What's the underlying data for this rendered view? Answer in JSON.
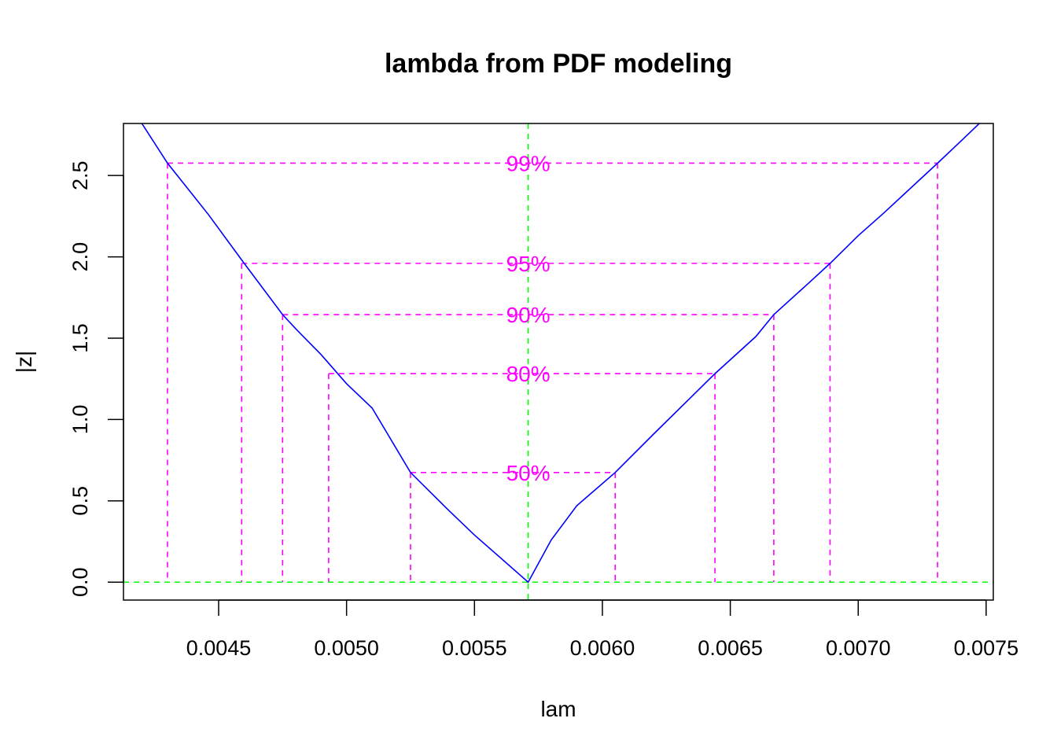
{
  "chart_data": {
    "type": "line",
    "title": "lambda from PDF modeling",
    "xlabel": "lam",
    "ylabel": "|z|",
    "xlim": [
      0.004128,
      0.007528
    ],
    "ylim": [
      -0.11,
      2.82
    ],
    "x_ticks": [
      0.0045,
      0.005,
      0.0055,
      0.006,
      0.0065,
      0.007,
      0.0075
    ],
    "x_tick_labels": [
      "0.0045",
      "0.0050",
      "0.0055",
      "0.0060",
      "0.0065",
      "0.0070",
      "0.0075"
    ],
    "y_ticks": [
      0.0,
      0.5,
      1.0,
      1.5,
      2.0,
      2.5
    ],
    "y_tick_labels": [
      "0.0",
      "0.5",
      "1.0",
      "1.5",
      "2.0",
      "2.5"
    ],
    "grid": false,
    "curve": {
      "color": "#0000ff",
      "x": [
        0.0042,
        0.0043,
        0.00446,
        0.0046,
        0.00475,
        0.0048,
        0.0049,
        0.005,
        0.0051,
        0.00525,
        0.0054,
        0.0055,
        0.00571,
        0.0058,
        0.0059,
        0.00605,
        0.0062,
        0.00644,
        0.0066,
        0.00667,
        0.0068,
        0.00689,
        0.007,
        0.0071,
        0.00731,
        0.0074,
        0.0075
      ],
      "y": [
        2.82,
        2.576,
        2.26,
        1.96,
        1.645,
        1.56,
        1.4,
        1.22,
        1.07,
        0.674,
        0.44,
        0.29,
        0.0,
        0.26,
        0.47,
        0.674,
        0.91,
        1.282,
        1.51,
        1.645,
        1.83,
        1.96,
        2.13,
        2.27,
        2.576,
        2.71,
        2.86
      ]
    },
    "center": {
      "x": 0.00571,
      "color": "#00ff00"
    },
    "zero_line": {
      "y": 0.0,
      "color": "#00ff00"
    },
    "intervals": [
      {
        "label": "50%",
        "z": 0.674,
        "lower": 0.00525,
        "upper": 0.00605
      },
      {
        "label": "80%",
        "z": 1.282,
        "lower": 0.00493,
        "upper": 0.00644
      },
      {
        "label": "90%",
        "z": 1.645,
        "lower": 0.00475,
        "upper": 0.00667
      },
      {
        "label": "95%",
        "z": 1.96,
        "lower": 0.00459,
        "upper": 0.00689
      },
      {
        "label": "99%",
        "z": 2.576,
        "lower": 0.0043,
        "upper": 0.00731
      }
    ],
    "interval_color": "#ff00ff"
  }
}
